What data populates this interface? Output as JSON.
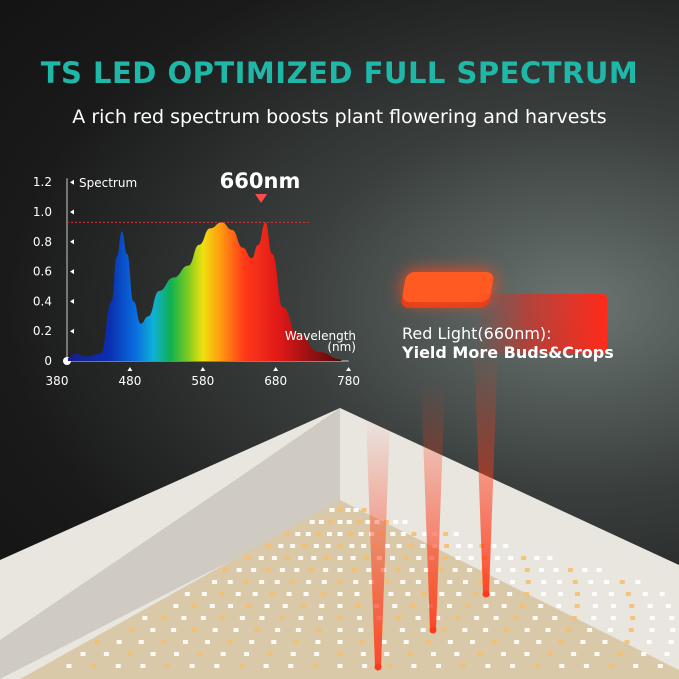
{
  "header": {
    "title": "TS LED OPTIMIZED FULL SPECTRUM",
    "subtitle": "A rich red spectrum boosts plant flowering and harvests"
  },
  "chart_data": {
    "type": "area",
    "title": "",
    "ylabel": "Spectrum",
    "xlabel": "Wavelength (nm)",
    "xlabel_line1": "Wavelength",
    "xlabel_line2": "(nm)",
    "annotation": "660nm",
    "reference_line": 0.93,
    "xlim": [
      380,
      780
    ],
    "ylim": [
      0,
      1.2
    ],
    "xticks": [
      "380",
      "480",
      "580",
      "680",
      "780"
    ],
    "yticks": [
      "0",
      "0.2",
      "0.4",
      "0.6",
      "0.8",
      "1.0",
      "1.2"
    ],
    "grid": false,
    "x": [
      395,
      405,
      420,
      440,
      455,
      462,
      469,
      476,
      485,
      495,
      505,
      520,
      540,
      560,
      575,
      590,
      606,
      620,
      635,
      647,
      656,
      666,
      675,
      690,
      710,
      740,
      770
    ],
    "values": [
      0.02,
      0.05,
      0.03,
      0.05,
      0.4,
      0.7,
      0.87,
      0.72,
      0.4,
      0.25,
      0.3,
      0.47,
      0.56,
      0.64,
      0.78,
      0.89,
      0.93,
      0.88,
      0.76,
      0.69,
      0.78,
      0.93,
      0.72,
      0.36,
      0.18,
      0.06,
      0.01
    ]
  },
  "callout": {
    "line1": "Red Light(660nm):",
    "line2": "Yield More Buds&Crops"
  },
  "colors": {
    "title": "#1fb8a8",
    "marker": "#ff4a4a",
    "red_light": "#ff3a1a"
  }
}
